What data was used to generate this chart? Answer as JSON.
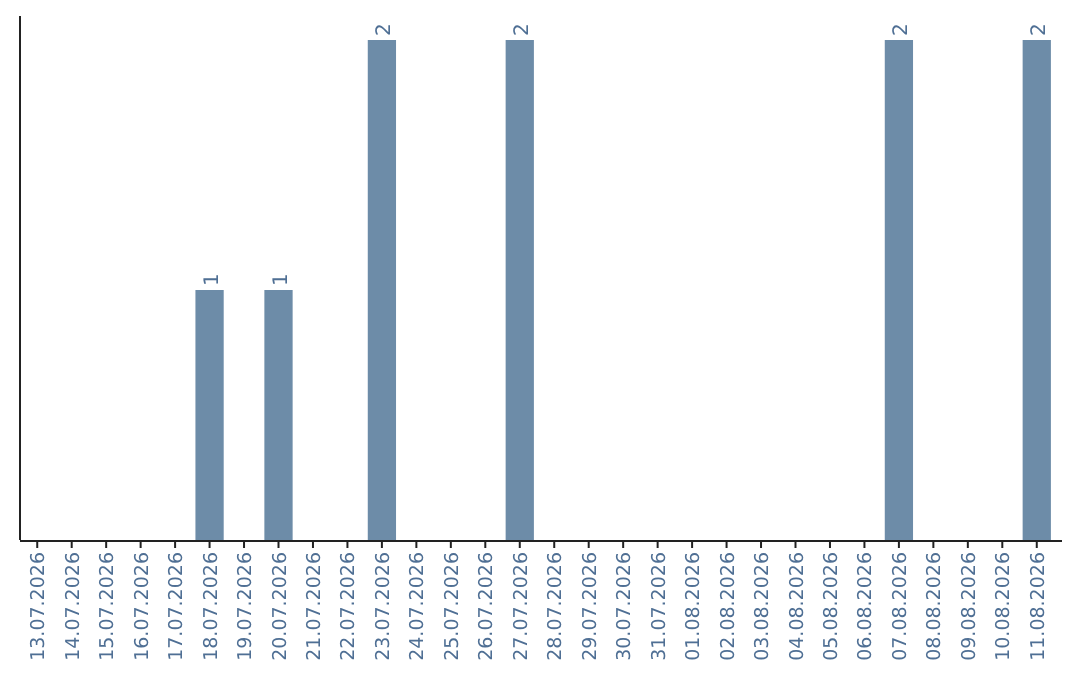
{
  "chart_data": {
    "type": "bar",
    "categories": [
      "13.07.2026",
      "14.07.2026",
      "15.07.2026",
      "16.07.2026",
      "17.07.2026",
      "18.07.2026",
      "19.07.2026",
      "20.07.2026",
      "21.07.2026",
      "22.07.2026",
      "23.07.2026",
      "24.07.2026",
      "25.07.2026",
      "26.07.2026",
      "27.07.2026",
      "28.07.2026",
      "29.07.2026",
      "30.07.2026",
      "31.07.2026",
      "01.08.2026",
      "02.08.2026",
      "03.08.2026",
      "04.08.2026",
      "05.08.2026",
      "06.08.2026",
      "07.08.2026",
      "08.08.2026",
      "09.08.2026",
      "10.08.2026",
      "11.08.2026"
    ],
    "values": [
      0,
      0,
      0,
      0,
      0,
      1,
      0,
      1,
      0,
      0,
      2,
      0,
      0,
      0,
      2,
      0,
      0,
      0,
      0,
      0,
      0,
      0,
      0,
      0,
      0,
      2,
      0,
      0,
      0,
      2
    ],
    "value_labels": [
      null,
      null,
      null,
      null,
      null,
      "1",
      null,
      "1",
      null,
      null,
      "2",
      null,
      null,
      null,
      "2",
      null,
      null,
      null,
      null,
      null,
      null,
      null,
      null,
      null,
      null,
      "2",
      null,
      null,
      null,
      "2"
    ],
    "color": "#6d8ca8",
    "ylim": [
      0,
      2
    ]
  }
}
